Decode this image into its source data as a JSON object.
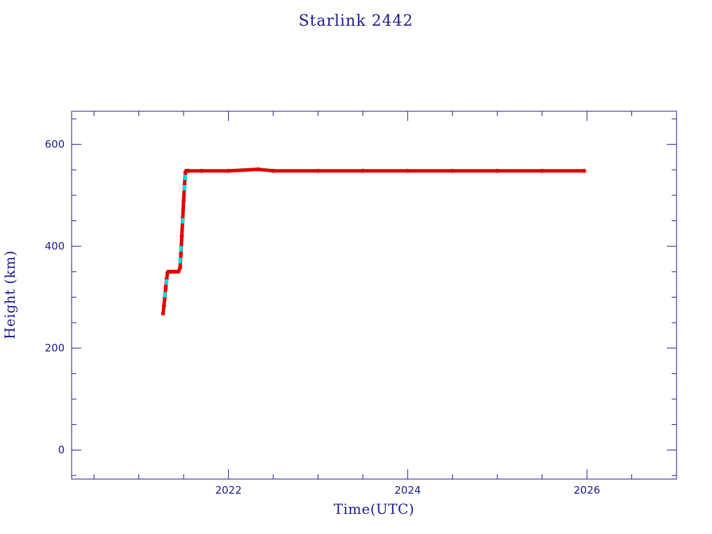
{
  "chart_data": {
    "type": "scatter",
    "title": "Starlink 2442",
    "xlabel": "Time(UTC)",
    "ylabel": "Height (km)",
    "xlim": [
      2020.25,
      2027.0
    ],
    "ylim": [
      -57,
      665
    ],
    "x_ticks": [
      2022,
      2024,
      2026
    ],
    "x_tick_labels": [
      "2022",
      "2024",
      "2026"
    ],
    "y_ticks": [
      0,
      200,
      400,
      600
    ],
    "y_tick_labels": [
      "0",
      "200",
      "400",
      "600"
    ],
    "grid": false,
    "colors": {
      "axis": "#1a1a8c",
      "primary": "#e00000",
      "secondary": "#00e0e0"
    },
    "series": [
      {
        "color": "#e00000",
        "marker": "asterisk",
        "x": [
          2021.27,
          2021.28,
          2021.29,
          2021.3,
          2021.31,
          2021.32,
          2021.33,
          2021.36,
          2021.4,
          2021.44,
          2021.46,
          2021.47,
          2021.48,
          2021.49,
          2021.5,
          2021.51,
          2021.52,
          2021.53,
          2021.55,
          2021.7,
          2022.0,
          2022.33,
          2022.5,
          2023.0,
          2023.5,
          2024.0,
          2024.5,
          2025.0,
          2025.5,
          2025.97
        ],
        "y": [
          268,
          283,
          300,
          318,
          335,
          348,
          350,
          350,
          350,
          350,
          358,
          385,
          420,
          455,
          490,
          520,
          545,
          548,
          548,
          548,
          548,
          551,
          548,
          548,
          548,
          548,
          548,
          548,
          548,
          548
        ]
      },
      {
        "color": "#00e0e0",
        "marker": "dot",
        "x": [
          2021.29,
          2021.31,
          2021.46,
          2021.47,
          2021.49,
          2021.51,
          2021.52
        ],
        "y": [
          305,
          330,
          372,
          395,
          450,
          515,
          535
        ]
      }
    ]
  }
}
